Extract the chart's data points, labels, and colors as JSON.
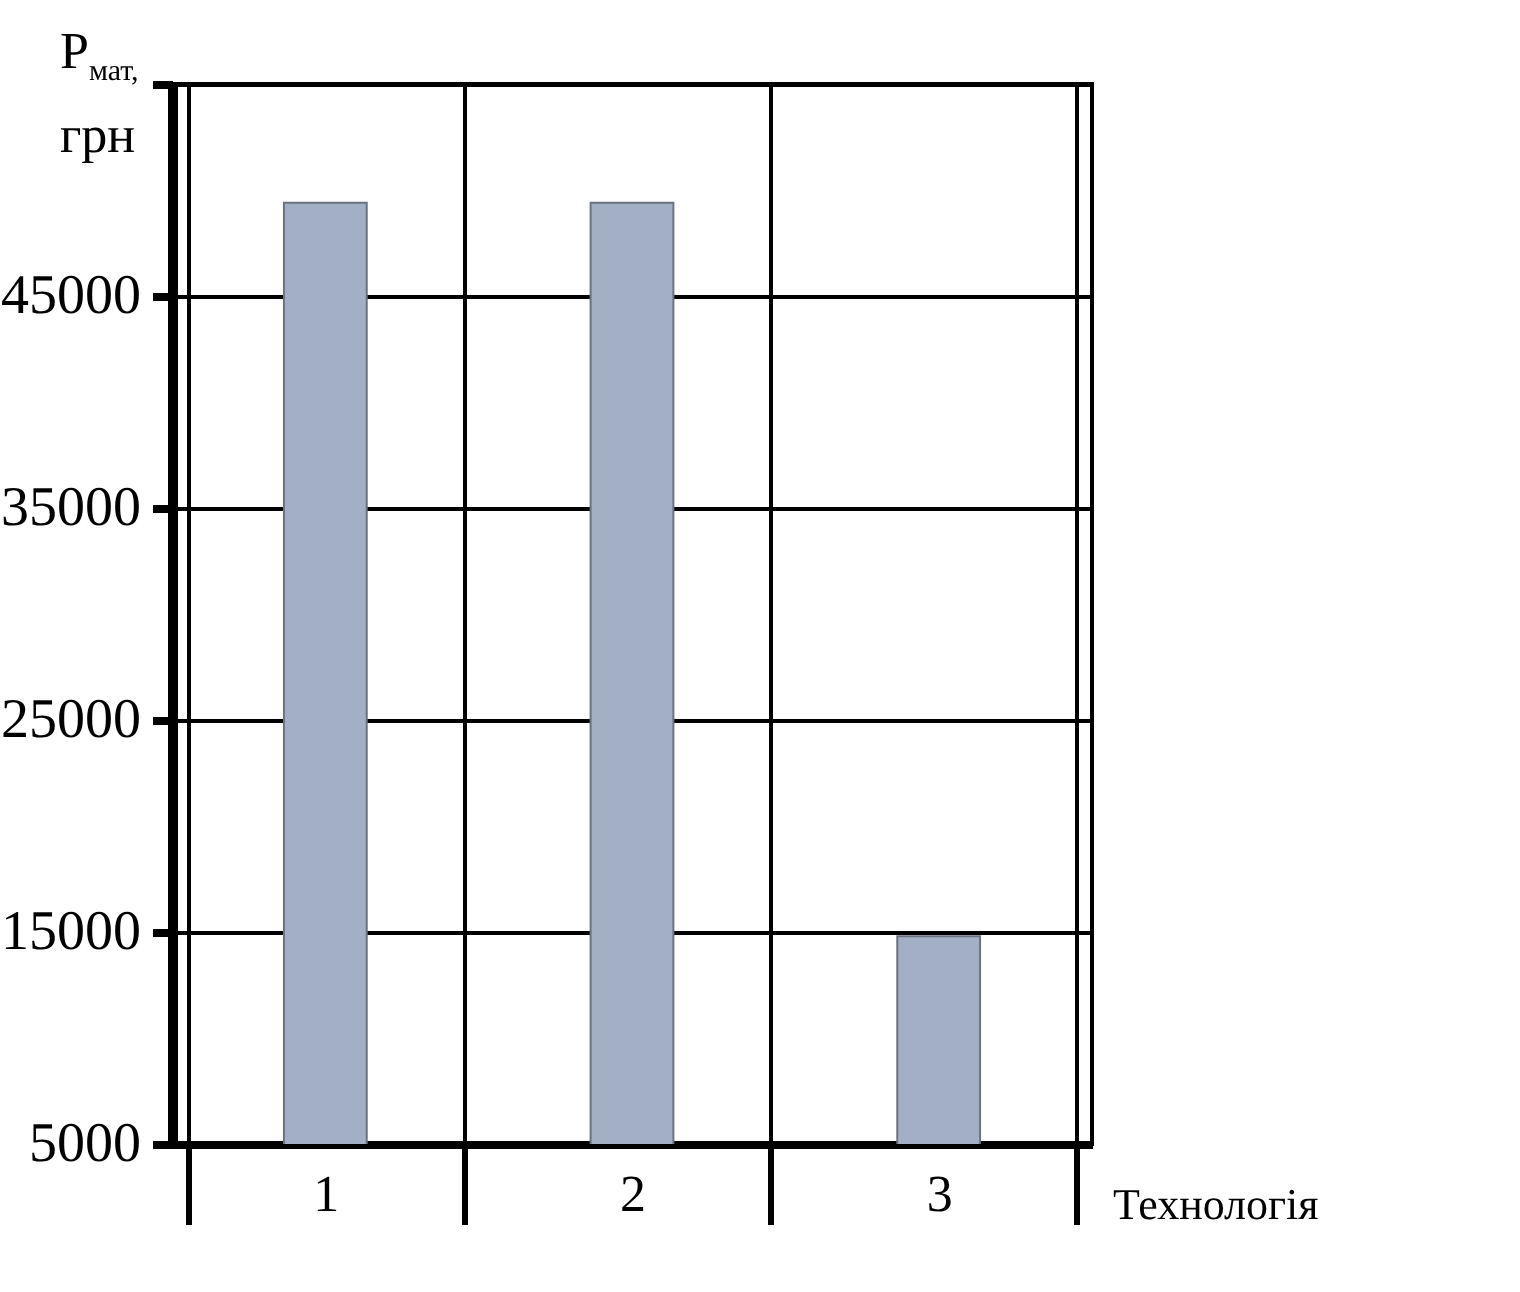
{
  "chart_data": {
    "type": "bar",
    "ylabel": "P$_{мат,}$ грн",
    "xlabel": "Технологія",
    "categories": [
      "1",
      "2",
      "3"
    ],
    "values": [
      49400,
      49400,
      14800
    ],
    "color": "#a3afc4",
    "ylim": [
      5000,
      55000
    ],
    "yticks": [
      5000,
      15000,
      25000,
      35000,
      45000,
      {
        "value": 55000,
        "label": null
      }
    ],
    "grid": true
  }
}
